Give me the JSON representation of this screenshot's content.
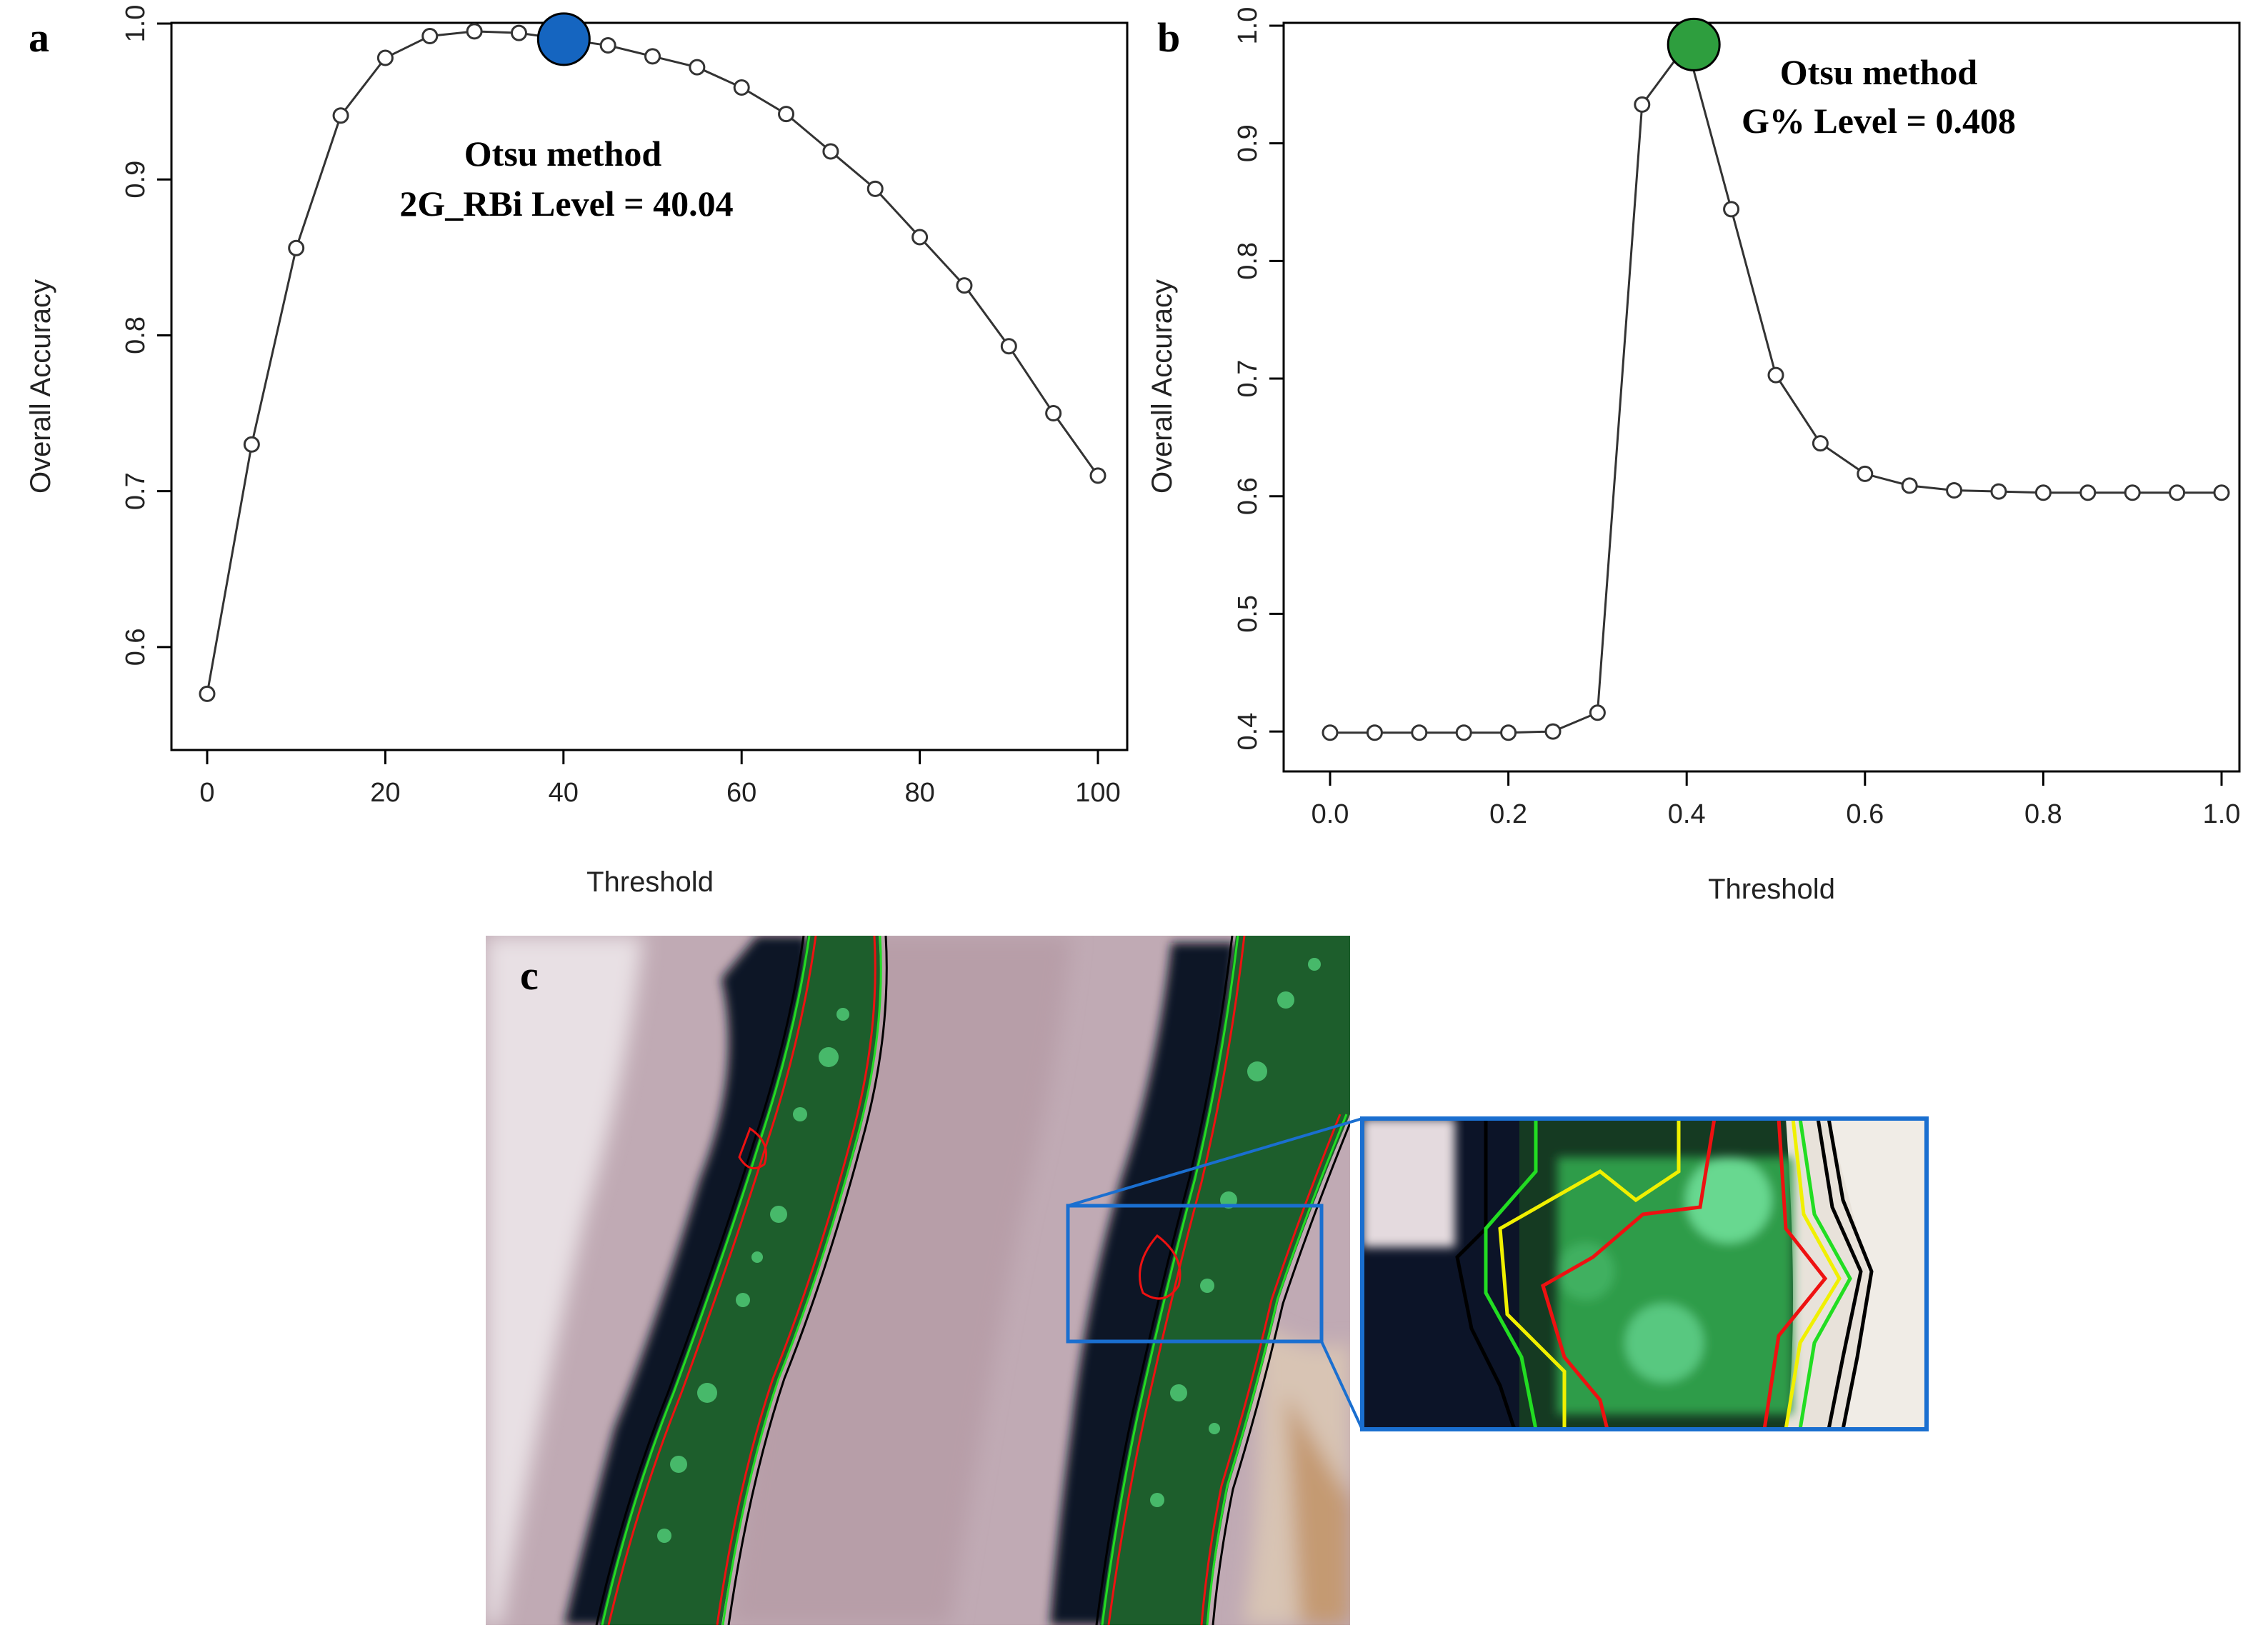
{
  "panels": {
    "a": "a",
    "b": "b",
    "c": "c"
  },
  "chart_data": [
    {
      "type": "line",
      "panel": "a",
      "title": "",
      "xlabel": "Threshold",
      "ylabel": "Overall Accuracy",
      "xlim": [
        0,
        100
      ],
      "ylim": [
        0.55,
        1.0
      ],
      "xticks": [
        0,
        20,
        40,
        60,
        80,
        100
      ],
      "yticks": [
        0.6,
        0.7,
        0.8,
        0.9,
        1.0
      ],
      "xtick_labels": [
        "0",
        "20",
        "40",
        "60",
        "80",
        "100"
      ],
      "ytick_labels": [
        "0.6",
        "0.7",
        "0.8",
        "0.9",
        "1.0"
      ],
      "grid": false,
      "series": [
        {
          "x": [
            0,
            5,
            10,
            15,
            20,
            25,
            30,
            35,
            40,
            45,
            50,
            55,
            60,
            65,
            70,
            75,
            80,
            85,
            90,
            95,
            100
          ],
          "values": [
            0.57,
            0.73,
            0.856,
            0.941,
            0.978,
            0.992,
            0.995,
            0.994,
            0.99,
            0.986,
            0.979,
            0.972,
            0.959,
            0.942,
            0.918,
            0.894,
            0.863,
            0.832,
            0.793,
            0.75,
            0.71
          ]
        }
      ],
      "highlight": {
        "x": 40.04,
        "y": 0.99,
        "color": "#1565c0"
      },
      "annotation": {
        "line1": "Otsu method",
        "line2": "2G_RBi Level = 40.04"
      }
    },
    {
      "type": "line",
      "panel": "b",
      "title": "",
      "xlabel": "Threshold",
      "ylabel": "Overall Accuracy",
      "xlim": [
        0,
        1
      ],
      "ylim": [
        0.38,
        1.0
      ],
      "xticks": [
        0,
        0.2,
        0.4,
        0.6,
        0.8,
        1.0
      ],
      "yticks": [
        0.4,
        0.5,
        0.6,
        0.7,
        0.8,
        0.9,
        1.0
      ],
      "xtick_labels": [
        "0.0",
        "0.2",
        "0.4",
        "0.6",
        "0.8",
        "1.0"
      ],
      "ytick_labels": [
        "0.4",
        "0.5",
        "0.6",
        "0.7",
        "0.8",
        "0.9",
        "1.0"
      ],
      "grid": false,
      "series": [
        {
          "x": [
            0.0,
            0.05,
            0.1,
            0.15,
            0.2,
            0.25,
            0.3,
            0.35,
            0.4,
            0.45,
            0.5,
            0.55,
            0.6,
            0.65,
            0.7,
            0.75,
            0.8,
            0.85,
            0.9,
            0.95,
            1.0
          ],
          "values": [
            0.399,
            0.399,
            0.399,
            0.399,
            0.399,
            0.4,
            0.416,
            0.933,
            0.984,
            0.844,
            0.703,
            0.645,
            0.619,
            0.609,
            0.605,
            0.604,
            0.603,
            0.603,
            0.603,
            0.603,
            0.603
          ]
        }
      ],
      "highlight": {
        "x": 0.408,
        "y": 0.984,
        "color": "#2e9e3e"
      },
      "annotation": {
        "line1": "Otsu method",
        "line2": "G% Level = 0.408"
      }
    }
  ],
  "image_panel": {
    "colors": {
      "soil": "#bfa8b2",
      "soil_light": "#e9dde1",
      "shadow": "#0c1428",
      "canopy": "#1e6e2e",
      "canopy_bright": "#52d07a",
      "outline_black": "#000000",
      "outline_green": "#22dd22",
      "outline_yellow": "#f0f000",
      "outline_red": "#ee1111",
      "zoom_box": "#1a6fd0"
    }
  }
}
